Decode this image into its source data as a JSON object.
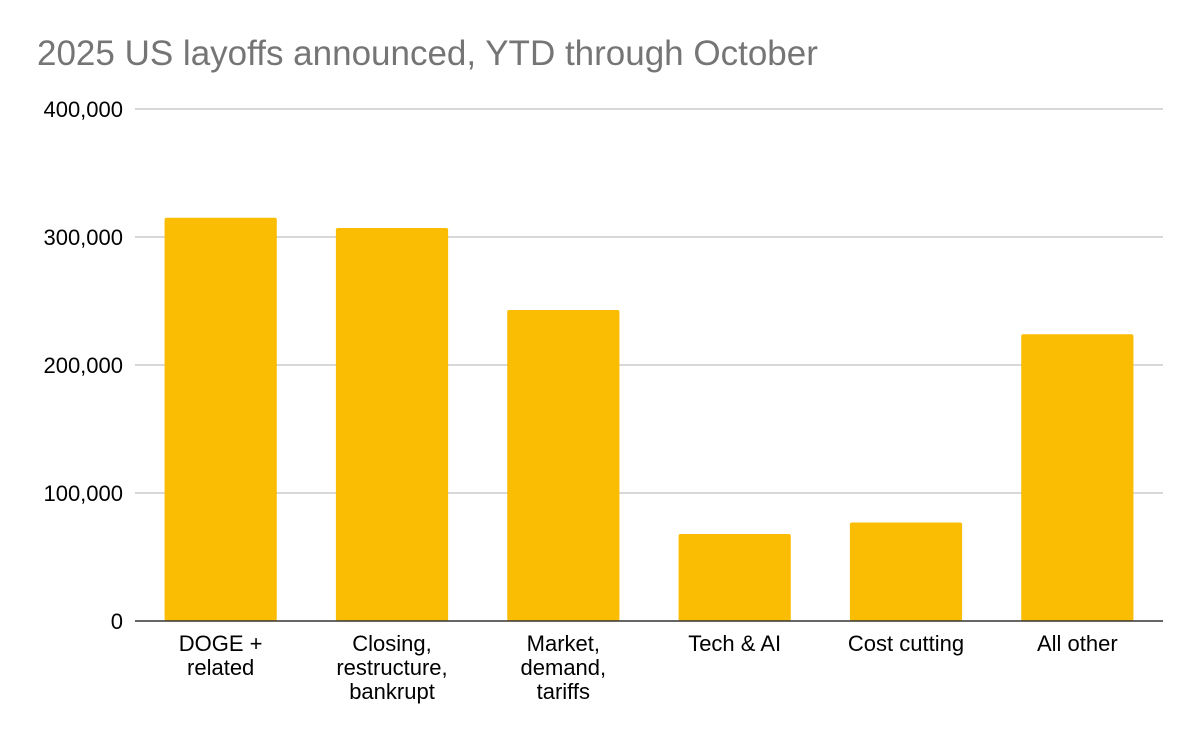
{
  "chart_data": {
    "type": "bar",
    "title": "2025 US layoffs announced, YTD through October",
    "categories": [
      [
        "DOGE +",
        "related"
      ],
      [
        "Closing,",
        "restructure,",
        "bankrupt"
      ],
      [
        "Market,",
        "demand,",
        "tariffs"
      ],
      [
        "Tech & AI"
      ],
      [
        "Cost cutting"
      ],
      [
        "All other"
      ]
    ],
    "values": [
      315000,
      307000,
      243000,
      68000,
      77000,
      224000
    ],
    "ylim": [
      0,
      400000
    ],
    "yticks": [
      0,
      100000,
      200000,
      300000,
      400000
    ],
    "ytick_labels": [
      "0",
      "100,000",
      "200,000",
      "300,000",
      "400,000"
    ],
    "xlabel": "",
    "ylabel": "",
    "grid": true,
    "legend": "none",
    "colors": {
      "bar": "#FBBC04",
      "grid": "#cccccc",
      "axis": "#333333",
      "title": "#757575"
    }
  }
}
